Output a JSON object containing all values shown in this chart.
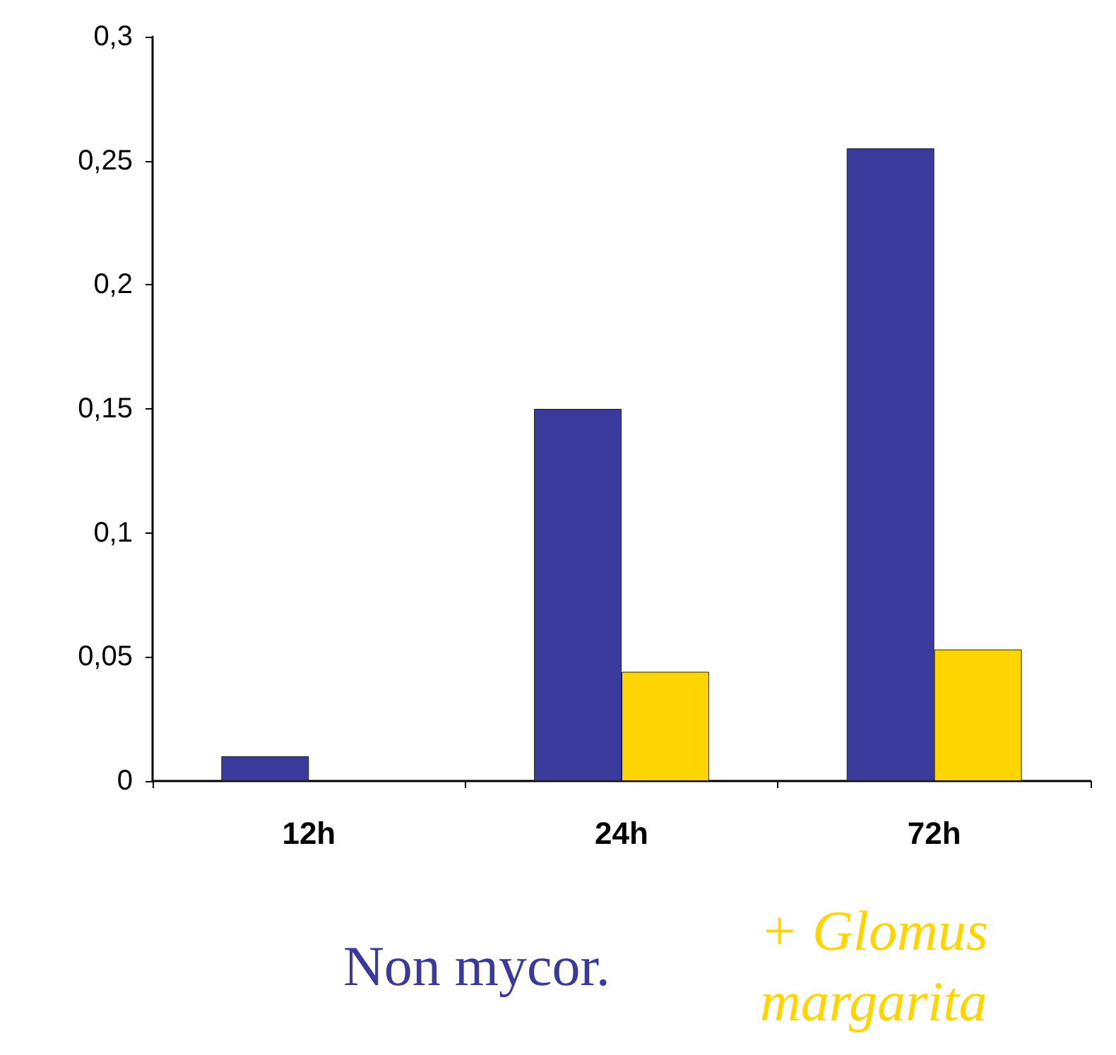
{
  "chart_data": {
    "type": "bar",
    "categories": [
      "12h",
      "24h",
      "72h"
    ],
    "series": [
      {
        "name": "Non mycor.",
        "color": "#3a3a9c",
        "values": [
          0.01,
          0.15,
          0.255
        ]
      },
      {
        "name": "+ Glomus margarita",
        "color": "#ffd500",
        "values": [
          null,
          0.044,
          0.053
        ]
      }
    ],
    "ylim": [
      0,
      0.3
    ],
    "yticks": [
      {
        "value": 0,
        "label": "0"
      },
      {
        "value": 0.05,
        "label": "0,05"
      },
      {
        "value": 0.1,
        "label": "0,1"
      },
      {
        "value": 0.15,
        "label": "0,15"
      },
      {
        "value": 0.2,
        "label": "0,2"
      },
      {
        "value": 0.25,
        "label": "0,25"
      },
      {
        "value": 0.3,
        "label": "0,3"
      }
    ],
    "grid": false,
    "legend": "bottom"
  }
}
